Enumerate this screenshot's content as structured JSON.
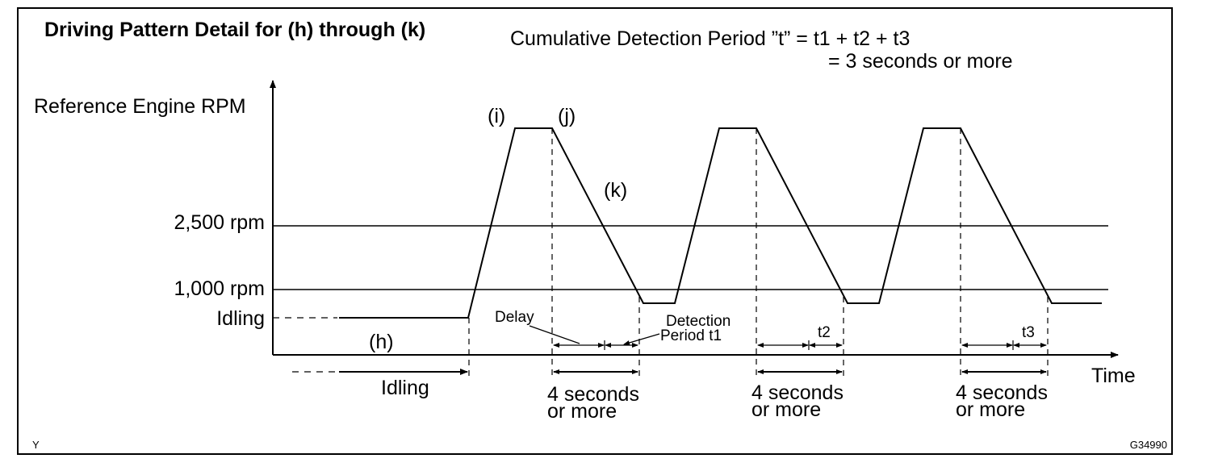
{
  "title": "Driving Pattern Detail for (h) through (k)",
  "formula": {
    "line1": "Cumulative Detection Period ”t” = t1 + t2 + t3",
    "line2": "= 3 seconds or more"
  },
  "axes": {
    "y_label": "Reference Engine RPM",
    "x_label": "Time",
    "y_ticks": [
      "2,500 rpm",
      "1,000 rpm",
      "Idling"
    ]
  },
  "phase_labels": {
    "h": "(h)",
    "i": "(i)",
    "j": "(j)",
    "k": "(k)"
  },
  "idling_label": "Idling",
  "delay_label": "Delay",
  "detection_label": {
    "line1": "Detection",
    "line2": "Period t1"
  },
  "period_labels": [
    "t2",
    "t3"
  ],
  "duration_label": {
    "line1": "4 seconds",
    "line2": "or more"
  },
  "corner_left": "Y",
  "corner_right": "G34990",
  "colors": {
    "ink": "#000000",
    "background": "#ffffff"
  }
}
